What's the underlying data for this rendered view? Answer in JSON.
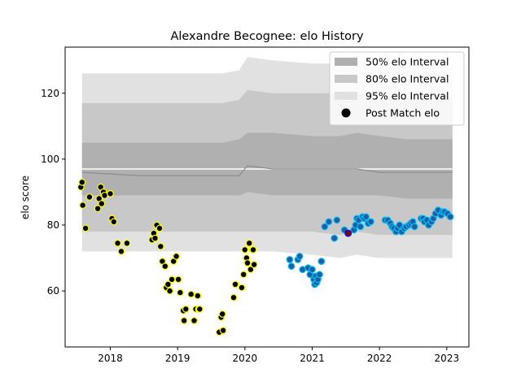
{
  "chart_data": {
    "type": "scatter",
    "title": "Alexandre Becognee: elo History",
    "xlabel": "",
    "ylabel": "elo score",
    "xlim": [
      "2017-05-01",
      "2023-05-01"
    ],
    "ylim": [
      43,
      134
    ],
    "x_ticks": [
      "2018",
      "2019",
      "2020",
      "2021",
      "2022",
      "2023"
    ],
    "y_ticks": [
      60,
      80,
      100,
      120
    ],
    "grid": false,
    "legend_position": "top-right",
    "legend": [
      {
        "label": "50% elo Interval",
        "color": "#b0b0b0",
        "kind": "patch"
      },
      {
        "label": "80% elo Interval",
        "color": "#c8c8c8",
        "kind": "patch"
      },
      {
        "label": "95% elo Interval",
        "color": "#e1e1e1",
        "kind": "patch"
      },
      {
        "label": "Post Match elo",
        "color": "#000000",
        "kind": "marker"
      }
    ],
    "bands": {
      "x": [
        "2017-08-01",
        "2018-06-01",
        "2019-06-01",
        "2019-09-01",
        "2019-12-01",
        "2020-01-15",
        "2020-06-01",
        "2021-01-01",
        "2021-06-01",
        "2021-09-01",
        "2022-01-01",
        "2022-06-01",
        "2023-02-01"
      ],
      "median": [
        97,
        97,
        97,
        97,
        97,
        97,
        97,
        97,
        97,
        97,
        97,
        97,
        97
      ],
      "p95_upper": [
        126,
        126,
        126,
        126,
        127,
        131,
        130,
        129,
        129,
        130,
        129,
        128,
        128
      ],
      "p95_lower": [
        72,
        72,
        72,
        72,
        72,
        72,
        72,
        71,
        70,
        71,
        70,
        70,
        70
      ],
      "p80_upper": [
        117,
        117,
        117,
        117,
        118,
        121,
        120,
        120,
        120,
        120,
        119,
        119,
        119
      ],
      "p80_lower": [
        78,
        78,
        78,
        78,
        78,
        78,
        78,
        78,
        77,
        78,
        77,
        77,
        77
      ],
      "p50_upper": [
        105,
        105,
        105,
        105,
        106,
        108,
        108,
        107,
        107,
        108,
        107,
        106,
        106
      ],
      "p50_lower": [
        89,
        89,
        89,
        89,
        89,
        90,
        89,
        89,
        89,
        89,
        89,
        88,
        88
      ],
      "mean": [
        96,
        95,
        95,
        95,
        95,
        98,
        97,
        97,
        97,
        97,
        96,
        96,
        96
      ]
    },
    "series": [
      {
        "fill": "#000000",
        "edge": "#ffff00",
        "x": [
          "2017-07-25",
          "2017-08-01",
          "2017-08-05",
          "2017-08-20",
          "2017-09-10",
          "2017-10-25",
          "2017-11-01",
          "2017-11-10",
          "2017-11-15",
          "2017-11-25",
          "2017-12-01",
          "2018-01-01",
          "2018-01-10",
          "2018-01-20",
          "2018-02-10",
          "2018-03-01",
          "2018-04-01",
          "2018-08-15",
          "2018-08-25",
          "2018-09-01",
          "2018-09-10",
          "2018-09-25",
          "2018-10-01",
          "2018-10-10",
          "2018-10-25",
          "2018-11-01",
          "2018-11-10",
          "2018-11-20",
          "2018-12-01",
          "2018-12-10",
          "2018-12-25",
          "2019-01-05",
          "2019-01-15",
          "2019-02-01",
          "2019-02-05",
          "2019-02-15",
          "2019-03-15",
          "2019-04-01",
          "2019-04-10",
          "2019-04-20",
          "2019-04-25",
          "2019-05-01",
          "2019-08-15",
          "2019-08-25",
          "2019-09-01",
          "2019-09-05",
          "2019-11-01",
          "2019-11-10",
          "2019-12-15",
          "2019-12-25",
          "2020-01-01",
          "2020-01-10",
          "2020-01-15",
          "2020-01-25",
          "2020-02-01",
          "2020-02-10",
          "2020-02-15",
          "2020-02-20"
        ],
        "y": [
          91.5,
          93,
          86,
          79,
          88.5,
          85,
          88,
          91.5,
          86.5,
          90,
          89,
          89.5,
          82,
          81,
          74.5,
          72,
          74.5,
          75.5,
          77.5,
          76,
          80,
          79,
          73.5,
          69,
          67.5,
          61,
          62,
          60,
          63.5,
          69,
          70.5,
          63.5,
          59.5,
          54,
          51,
          54.5,
          59,
          51,
          54.5,
          58.5,
          54.5,
          54.5,
          47.5,
          52,
          53,
          48,
          58,
          62,
          61,
          65,
          72.5,
          70,
          68.5,
          74.5,
          66.5,
          72.5,
          72.5,
          68
        ]
      },
      {
        "fill": "#1f5f9f",
        "edge": "#00bfff",
        "x": [
          "2020-09-01",
          "2020-09-10",
          "2020-10-15",
          "2020-10-25",
          "2020-11-10",
          "2020-12-10",
          "2020-12-20",
          "2021-01-01",
          "2021-01-10",
          "2021-01-15",
          "2021-01-20",
          "2021-01-25",
          "2021-02-01",
          "2021-02-10",
          "2021-02-20",
          "2021-03-10",
          "2021-04-01",
          "2021-05-01",
          "2021-05-15",
          "2021-06-25",
          "2021-08-15",
          "2021-08-25",
          "2021-09-01",
          "2021-09-10",
          "2021-09-20",
          "2021-10-01",
          "2021-10-10",
          "2021-10-20",
          "2021-11-01",
          "2021-11-15",
          "2022-02-01",
          "2022-02-15",
          "2022-03-01",
          "2022-03-10",
          "2022-03-20",
          "2022-04-01",
          "2022-04-10",
          "2022-04-20",
          "2022-05-01",
          "2022-05-15",
          "2022-05-25",
          "2022-06-10",
          "2022-06-20",
          "2022-07-01",
          "2022-07-10",
          "2022-08-15",
          "2022-08-25",
          "2022-09-01",
          "2022-09-15",
          "2022-09-25",
          "2022-10-10",
          "2022-10-20",
          "2022-11-01",
          "2022-11-15",
          "2022-12-01",
          "2022-12-10",
          "2022-12-20",
          "2023-01-05",
          "2023-01-20"
        ],
        "y": [
          69.5,
          67.5,
          69.5,
          70.5,
          66.5,
          67,
          65,
          66.5,
          63.5,
          62,
          64.5,
          62.5,
          63.5,
          65,
          69,
          79.5,
          81,
          76,
          81.5,
          78.5,
          78.5,
          80,
          82,
          81.5,
          79.5,
          82.5,
          82,
          82.5,
          80.5,
          81,
          81.5,
          81.5,
          80.5,
          79.5,
          79,
          78,
          79,
          80,
          78,
          79,
          79.5,
          80,
          80.5,
          81,
          79.5,
          82,
          82,
          81,
          81.5,
          80,
          81,
          82,
          83.5,
          84.5,
          83,
          84,
          84,
          83.5,
          82.5
        ]
      },
      {
        "fill": "#8b0000",
        "edge": "#0000ff",
        "x": [
          "2021-07-15"
        ],
        "y": [
          77.5
        ]
      }
    ]
  }
}
